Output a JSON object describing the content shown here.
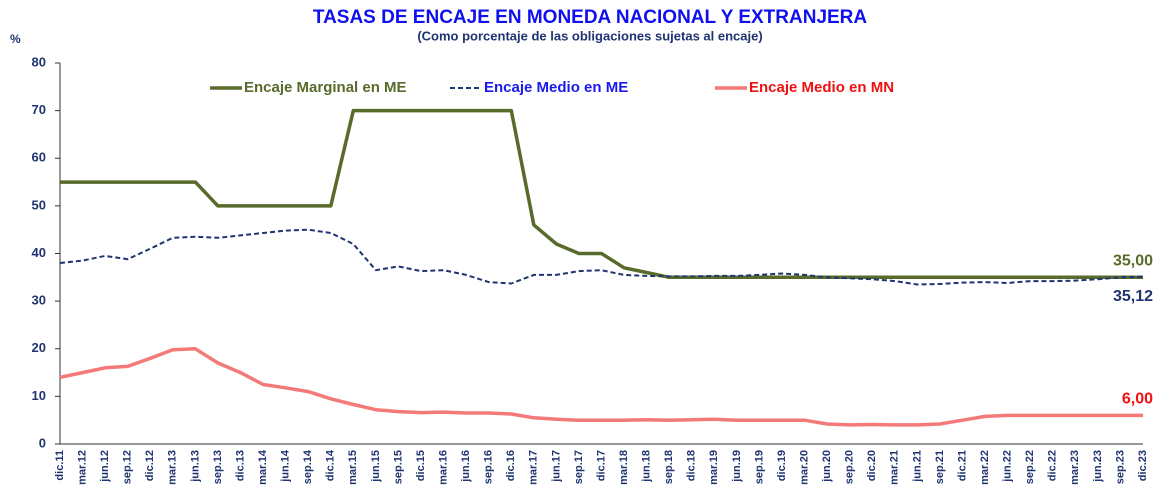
{
  "chart_data": {
    "type": "line",
    "title": "TASAS DE ENCAJE EN MONEDA NACIONAL Y EXTRANJERA",
    "subtitle": "(Como porcentaje de las obligaciones sujetas al encaje)",
    "y_label": "%",
    "categories": [
      "dic.11",
      "mar.12",
      "jun.12",
      "sep.12",
      "dic.12",
      "mar.13",
      "jun.13",
      "sep.13",
      "dic.13",
      "mar.14",
      "jun.14",
      "sep.14",
      "dic.14",
      "mar.15",
      "jun.15",
      "sep.15",
      "dic.15",
      "mar.16",
      "jun.16",
      "sep.16",
      "dic.16",
      "mar.17",
      "jun.17",
      "sep.17",
      "dic.17",
      "mar.18",
      "jun.18",
      "sep.18",
      "dic.18",
      "mar.19",
      "jun.19",
      "sep.19",
      "dic.19",
      "mar.20",
      "jun.20",
      "sep.20",
      "dic.20",
      "mar.21",
      "jun.21",
      "sep.21",
      "dic.21",
      "mar.22",
      "jun.22",
      "sep.22",
      "dic.22",
      "mar.23",
      "jun.23",
      "sep.23",
      "dic.23"
    ],
    "series": [
      {
        "name": "Encaje Marginal en ME",
        "color": "#586b2a",
        "legend_color": "#586b2a",
        "dash": false,
        "values": [
          55,
          55,
          55,
          55,
          55,
          55,
          55,
          50,
          50,
          50,
          50,
          50,
          50,
          70,
          70,
          70,
          70,
          70,
          70,
          70,
          70,
          46,
          42,
          40,
          40,
          37,
          36,
          35,
          35,
          35,
          35,
          35,
          35,
          35,
          35,
          35,
          35,
          35,
          35,
          35,
          35,
          35,
          35,
          35,
          35,
          35,
          35,
          35,
          35
        ],
        "value_labels": [
          null,
          null,
          null,
          null,
          null,
          null,
          null,
          null,
          null,
          null,
          null,
          null,
          null,
          null,
          null,
          null,
          null,
          null,
          null,
          null,
          null,
          null,
          null,
          null,
          null,
          null,
          null,
          null,
          null,
          null,
          null,
          null,
          null,
          null,
          null,
          null,
          null,
          null,
          null,
          null,
          null,
          null,
          null,
          null,
          null,
          null,
          null,
          null,
          "35,00"
        ]
      },
      {
        "name": "Encaje Medio en ME",
        "color": "#1f3470",
        "legend_color": "#1a1aee",
        "dash": true,
        "values": [
          38,
          38.5,
          39.5,
          38.8,
          41,
          43.3,
          43.5,
          43.3,
          43.8,
          44.3,
          44.8,
          45,
          44.3,
          42,
          36.5,
          37.3,
          36.3,
          36.5,
          35.5,
          34,
          33.7,
          35.5,
          35.5,
          36.3,
          36.5,
          35.5,
          35.3,
          35.2,
          35.2,
          35.3,
          35.3,
          35.5,
          35.8,
          35.5,
          35,
          34.8,
          34.6,
          34.2,
          33.5,
          33.6,
          33.9,
          34,
          33.8,
          34.2,
          34.2,
          34.3,
          34.6,
          35,
          35.12
        ],
        "value_labels": [
          null,
          null,
          null,
          null,
          null,
          null,
          null,
          null,
          null,
          null,
          null,
          null,
          null,
          null,
          null,
          null,
          null,
          null,
          null,
          null,
          null,
          null,
          null,
          null,
          null,
          null,
          null,
          null,
          null,
          null,
          null,
          null,
          null,
          null,
          null,
          null,
          null,
          null,
          null,
          null,
          null,
          null,
          null,
          null,
          null,
          null,
          null,
          null,
          "35,12"
        ]
      },
      {
        "name": "Encaje Medio en MN",
        "color": "#f47a7a",
        "legend_color": "#ee1111",
        "dash": false,
        "values": [
          14,
          15,
          16,
          16.3,
          18,
          19.8,
          20,
          17,
          15,
          12.5,
          11.8,
          11,
          9.5,
          8.3,
          7.2,
          6.8,
          6.6,
          6.7,
          6.5,
          6.5,
          6.3,
          5.5,
          5.2,
          5,
          5,
          5,
          5.1,
          5,
          5.1,
          5.2,
          5,
          5,
          5,
          5,
          4.2,
          4,
          4.1,
          4,
          4,
          4.2,
          5,
          5.8,
          6,
          6,
          6,
          6,
          6,
          6,
          6
        ],
        "value_labels": [
          null,
          null,
          null,
          null,
          null,
          null,
          null,
          null,
          null,
          null,
          null,
          null,
          null,
          null,
          null,
          null,
          null,
          null,
          null,
          null,
          null,
          null,
          null,
          null,
          null,
          null,
          null,
          null,
          null,
          null,
          null,
          null,
          null,
          null,
          null,
          null,
          null,
          null,
          null,
          null,
          null,
          null,
          null,
          null,
          null,
          null,
          null,
          null,
          "6,00"
        ]
      }
    ],
    "ylim": [
      0,
      80
    ],
    "yticks": [
      0,
      10,
      20,
      30,
      40,
      50,
      60,
      70,
      80
    ]
  }
}
